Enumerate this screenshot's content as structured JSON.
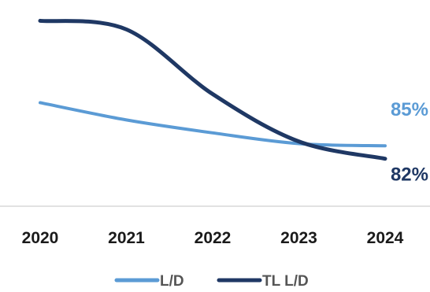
{
  "chart_data": {
    "type": "line",
    "categories": [
      "2020",
      "2021",
      "2022",
      "2023",
      "2024"
    ],
    "series": [
      {
        "name": "L/D",
        "values": [
          95,
          91,
          88,
          85.5,
          85
        ],
        "color": "#5b9bd5",
        "end_label": "85%"
      },
      {
        "name": "TL L/D",
        "values": [
          114,
          112,
          97,
          86,
          82
        ],
        "color": "#1f3864",
        "end_label": "82%"
      }
    ],
    "title": "",
    "xlabel": "",
    "ylabel": "",
    "ylim": [
      75,
      117
    ],
    "grid": false,
    "legend": "bottom"
  }
}
